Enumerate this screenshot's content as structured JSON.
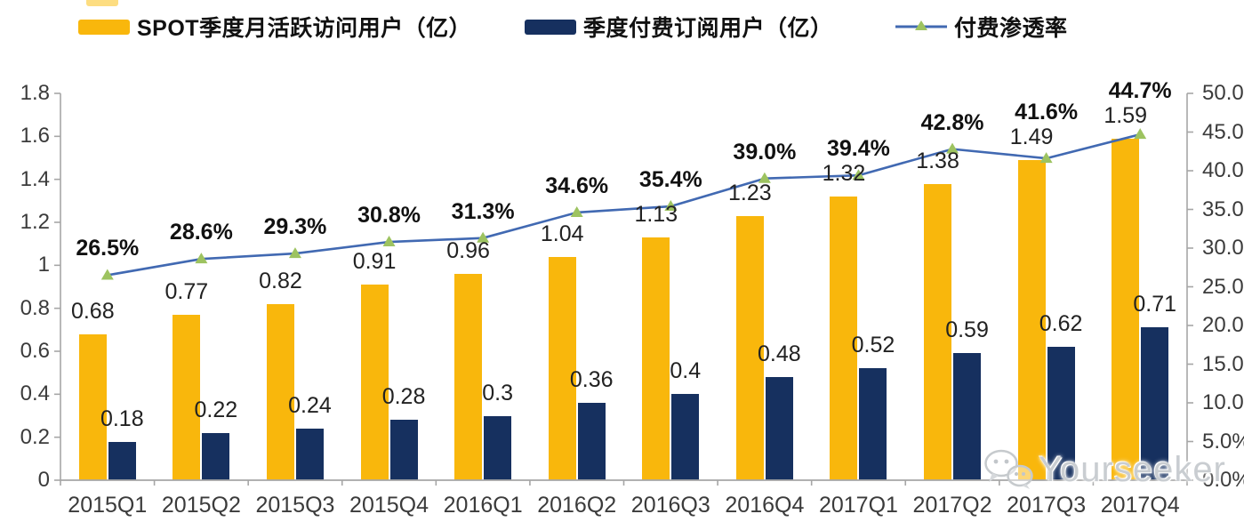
{
  "legend": {
    "mau_label": "SPOT季度月活跃访问用户（亿）",
    "subs_label": "季度付费订阅用户（亿）",
    "penetration_label": "付费渗透率"
  },
  "watermark": {
    "text": "Yourseeker",
    "icon": "wechat-icon"
  },
  "chart_data": {
    "type": "bar",
    "subtype": "grouped-bar-with-line-combo",
    "categories": [
      "2015Q1",
      "2015Q2",
      "2015Q3",
      "2015Q4",
      "2016Q1",
      "2016Q2",
      "2016Q3",
      "2016Q4",
      "2017Q1",
      "2017Q2",
      "2017Q3",
      "2017Q4"
    ],
    "series": [
      {
        "name": "SPOT季度月活跃访问用户（亿）",
        "type": "bar",
        "axis": "left",
        "values": [
          0.68,
          0.77,
          0.82,
          0.91,
          0.96,
          1.04,
          1.13,
          1.23,
          1.32,
          1.38,
          1.49,
          1.59
        ]
      },
      {
        "name": "季度付费订阅用户（亿）",
        "type": "bar",
        "axis": "left",
        "values": [
          0.18,
          0.22,
          0.24,
          0.28,
          0.3,
          0.36,
          0.4,
          0.48,
          0.52,
          0.59,
          0.62,
          0.71
        ]
      },
      {
        "name": "付费渗透率",
        "type": "line",
        "axis": "right",
        "values": [
          26.5,
          28.6,
          29.3,
          30.8,
          31.3,
          34.6,
          35.4,
          39.0,
          39.4,
          42.8,
          41.6,
          44.7
        ],
        "labels": [
          "26.5%",
          "28.6%",
          "29.3%",
          "30.8%",
          "31.3%",
          "34.6%",
          "35.4%",
          "39.0%",
          "39.4%",
          "42.8%",
          "41.6%",
          "44.7%"
        ]
      }
    ],
    "left_axis": {
      "min": 0,
      "max": 1.8,
      "tick_labels": [
        "0",
        "0.2",
        "0.4",
        "0.6",
        "0.8",
        "1",
        "1.2",
        "1.4",
        "1.6",
        "1.8"
      ]
    },
    "right_axis": {
      "min": 0,
      "max": 50,
      "tick_labels": [
        "0.0%",
        "5.0%",
        "10.0%",
        "15.0%",
        "20.0%",
        "25.0%",
        "30.0%",
        "35.0%",
        "40.0%",
        "45.0%",
        "50.0%"
      ]
    },
    "grid": false,
    "legend_position": "top",
    "colors": {
      "mau_bar": "#F9B70C",
      "subs_bar": "#16305F",
      "line": "#4169B2",
      "marker": "#9DC360",
      "axis": "#A6A6A6",
      "label_text": "#1a1a1a"
    }
  }
}
